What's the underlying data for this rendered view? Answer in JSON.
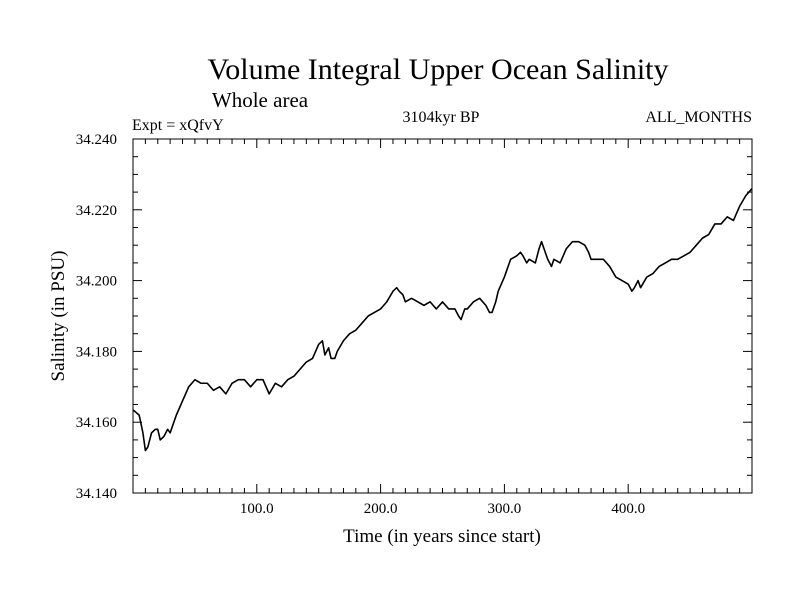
{
  "chart_data": {
    "type": "line",
    "title": "Volume Integral Upper Ocean Salinity",
    "subtitle": "Whole area",
    "annotations": {
      "left": "Expt = xQfvY",
      "center": "3104kyr BP",
      "right": "ALL_MONTHS"
    },
    "xlabel": "Time (in years since start)",
    "ylabel": "Salinity (in PSU)",
    "xlim": [
      0,
      500
    ],
    "ylim": [
      34.14,
      34.24
    ],
    "x_ticks": [
      100,
      200,
      300,
      400
    ],
    "x_tick_labels": [
      "100.0",
      "200.0",
      "300.0",
      "400.0"
    ],
    "y_ticks": [
      34.14,
      34.16,
      34.18,
      34.2,
      34.22,
      34.24
    ],
    "y_tick_labels": [
      "34.140",
      "34.160",
      "34.180",
      "34.200",
      "34.220",
      "34.240"
    ],
    "grid": false,
    "series": [
      {
        "name": "Salinity",
        "color": "#000000",
        "x": [
          0,
          5,
          8,
          10,
          12,
          15,
          18,
          20,
          22,
          25,
          28,
          30,
          35,
          40,
          45,
          50,
          55,
          60,
          65,
          70,
          75,
          80,
          85,
          90,
          95,
          100,
          105,
          110,
          115,
          120,
          125,
          130,
          135,
          140,
          145,
          150,
          153,
          155,
          158,
          160,
          163,
          165,
          170,
          175,
          180,
          185,
          190,
          195,
          200,
          205,
          210,
          213,
          215,
          218,
          220,
          225,
          230,
          235,
          240,
          245,
          250,
          255,
          260,
          263,
          265,
          268,
          270,
          275,
          280,
          285,
          288,
          290,
          293,
          295,
          300,
          305,
          310,
          313,
          315,
          318,
          320,
          325,
          328,
          330,
          333,
          335,
          338,
          340,
          345,
          350,
          355,
          360,
          365,
          368,
          370,
          375,
          380,
          385,
          390,
          395,
          400,
          403,
          405,
          408,
          410,
          415,
          420,
          425,
          430,
          435,
          440,
          445,
          450,
          455,
          460,
          465,
          470,
          475,
          480,
          485,
          490,
          495,
          500
        ],
        "values": [
          34.1635,
          34.162,
          34.157,
          34.152,
          34.153,
          34.157,
          34.158,
          34.158,
          34.155,
          34.156,
          34.158,
          34.157,
          34.162,
          34.166,
          34.17,
          34.172,
          34.171,
          34.171,
          34.169,
          34.17,
          34.168,
          34.171,
          34.172,
          34.172,
          34.17,
          34.172,
          34.172,
          34.168,
          34.171,
          34.17,
          34.172,
          34.173,
          34.175,
          34.177,
          34.178,
          34.182,
          34.183,
          34.179,
          34.181,
          34.178,
          34.178,
          34.18,
          34.183,
          34.185,
          34.186,
          34.188,
          34.19,
          34.191,
          34.192,
          34.194,
          34.197,
          34.198,
          34.197,
          34.196,
          34.194,
          34.195,
          34.194,
          34.193,
          34.194,
          34.192,
          34.194,
          34.192,
          34.192,
          34.19,
          34.189,
          34.192,
          34.192,
          34.194,
          34.195,
          34.193,
          34.191,
          34.191,
          34.194,
          34.197,
          34.201,
          34.206,
          34.207,
          34.208,
          34.207,
          34.205,
          34.206,
          34.205,
          34.209,
          34.211,
          34.208,
          34.206,
          34.204,
          34.206,
          34.205,
          34.209,
          34.211,
          34.211,
          34.21,
          34.208,
          34.206,
          34.206,
          34.206,
          34.204,
          34.201,
          34.2,
          34.199,
          34.197,
          34.198,
          34.2,
          34.198,
          34.201,
          34.202,
          34.204,
          34.205,
          34.206,
          34.206,
          34.207,
          34.208,
          34.21,
          34.212,
          34.213,
          34.216,
          34.216,
          34.218,
          34.217,
          34.221,
          34.224,
          34.226
        ]
      }
    ]
  }
}
